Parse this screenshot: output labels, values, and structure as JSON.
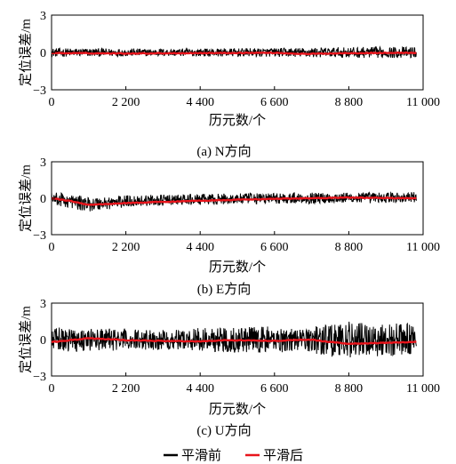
{
  "chart_data": [
    {
      "type": "line",
      "caption": "(a) N方向",
      "xlabel": "历元数/个",
      "ylabel": "定位误差/m",
      "xlim": [
        0,
        11000
      ],
      "ylim": [
        -3,
        3
      ],
      "xticks": [
        0,
        2200,
        4400,
        6600,
        8800,
        11000
      ],
      "xtick_labels": [
        "0",
        "2 200",
        "4 400",
        "6 600",
        "8 800",
        "11 000"
      ],
      "yticks": [
        -3,
        0,
        3
      ],
      "ytick_labels": [
        "−3",
        "0",
        "3"
      ],
      "x_end": 10800,
      "series": [
        {
          "name": "平滑前",
          "color": "#000000",
          "noise": [
            [
              0,
              0.35
            ],
            [
              3000,
              0.3
            ],
            [
              6500,
              0.35
            ],
            [
              9500,
              0.45
            ],
            [
              10800,
              0.45
            ]
          ],
          "trend": [
            [
              0,
              0.0
            ],
            [
              10800,
              0.0
            ]
          ]
        },
        {
          "name": "平滑后",
          "color": "#e8141b",
          "trend": [
            [
              0,
              -0.05
            ],
            [
              2200,
              -0.08
            ],
            [
              4400,
              -0.05
            ],
            [
              6600,
              -0.03
            ],
            [
              7500,
              -0.12
            ],
            [
              8800,
              -0.05
            ],
            [
              10800,
              -0.03
            ]
          ]
        }
      ]
    },
    {
      "type": "line",
      "caption": "(b) E方向",
      "xlabel": "历元数/个",
      "ylabel": "定位误差/m",
      "xlim": [
        0,
        11000
      ],
      "ylim": [
        -3,
        3
      ],
      "xticks": [
        0,
        2200,
        4400,
        6600,
        8800,
        11000
      ],
      "xtick_labels": [
        "0",
        "2 200",
        "4 400",
        "6 600",
        "8 800",
        "11 000"
      ],
      "yticks": [
        -3,
        0,
        3
      ],
      "ytick_labels": [
        "−3",
        "0",
        "3"
      ],
      "x_end": 10800,
      "series": [
        {
          "name": "平滑前",
          "color": "#000000",
          "noise": [
            [
              0,
              0.55
            ],
            [
              1000,
              0.6
            ],
            [
              3000,
              0.45
            ],
            [
              6600,
              0.45
            ],
            [
              10800,
              0.45
            ]
          ],
          "trend": [
            [
              0,
              0.0
            ],
            [
              1100,
              -0.5
            ],
            [
              2500,
              -0.2
            ],
            [
              6600,
              0.0
            ],
            [
              10800,
              0.05
            ]
          ]
        },
        {
          "name": "平滑后",
          "color": "#e8141b",
          "trend": [
            [
              0,
              0.0
            ],
            [
              600,
              -0.25
            ],
            [
              1100,
              -0.55
            ],
            [
              2200,
              -0.4
            ],
            [
              4400,
              -0.2
            ],
            [
              6600,
              -0.05
            ],
            [
              8800,
              0.05
            ],
            [
              10800,
              0.0
            ]
          ]
        }
      ]
    },
    {
      "type": "line",
      "caption": "(c) U方向",
      "xlabel": "历元数/个",
      "ylabel": "定位误差/m",
      "xlim": [
        0,
        11000
      ],
      "ylim": [
        -3,
        3
      ],
      "xticks": [
        0,
        2200,
        4400,
        6600,
        8800,
        11000
      ],
      "xtick_labels": [
        "0",
        "2 200",
        "4 400",
        "6 600",
        "8 800",
        "11 000"
      ],
      "yticks": [
        -3,
        0,
        3
      ],
      "ytick_labels": [
        "−3",
        "0",
        "3"
      ],
      "x_end": 10800,
      "series": [
        {
          "name": "平滑前",
          "color": "#000000",
          "noise": [
            [
              0,
              1.0
            ],
            [
              2200,
              0.9
            ],
            [
              4000,
              0.8
            ],
            [
              4400,
              1.0
            ],
            [
              6600,
              1.1
            ],
            [
              7500,
              0.9
            ],
            [
              8000,
              1.4
            ],
            [
              9000,
              1.5
            ],
            [
              10800,
              1.3
            ]
          ],
          "trend": [
            [
              0,
              0.0
            ],
            [
              10800,
              0.0
            ]
          ]
        },
        {
          "name": "平滑后",
          "color": "#e8141b",
          "trend": [
            [
              0,
              -0.2
            ],
            [
              1100,
              0.1
            ],
            [
              2200,
              -0.05
            ],
            [
              3000,
              -0.1
            ],
            [
              4400,
              -0.15
            ],
            [
              5200,
              -0.05
            ],
            [
              6600,
              -0.1
            ],
            [
              7600,
              0.0
            ],
            [
              8800,
              -0.35
            ],
            [
              10800,
              -0.2
            ]
          ]
        }
      ]
    }
  ],
  "legend": {
    "placement": "bottom-center",
    "entries": [
      {
        "label": "平滑前",
        "color": "#000000"
      },
      {
        "label": "平滑后",
        "color": "#e8141b"
      }
    ]
  }
}
